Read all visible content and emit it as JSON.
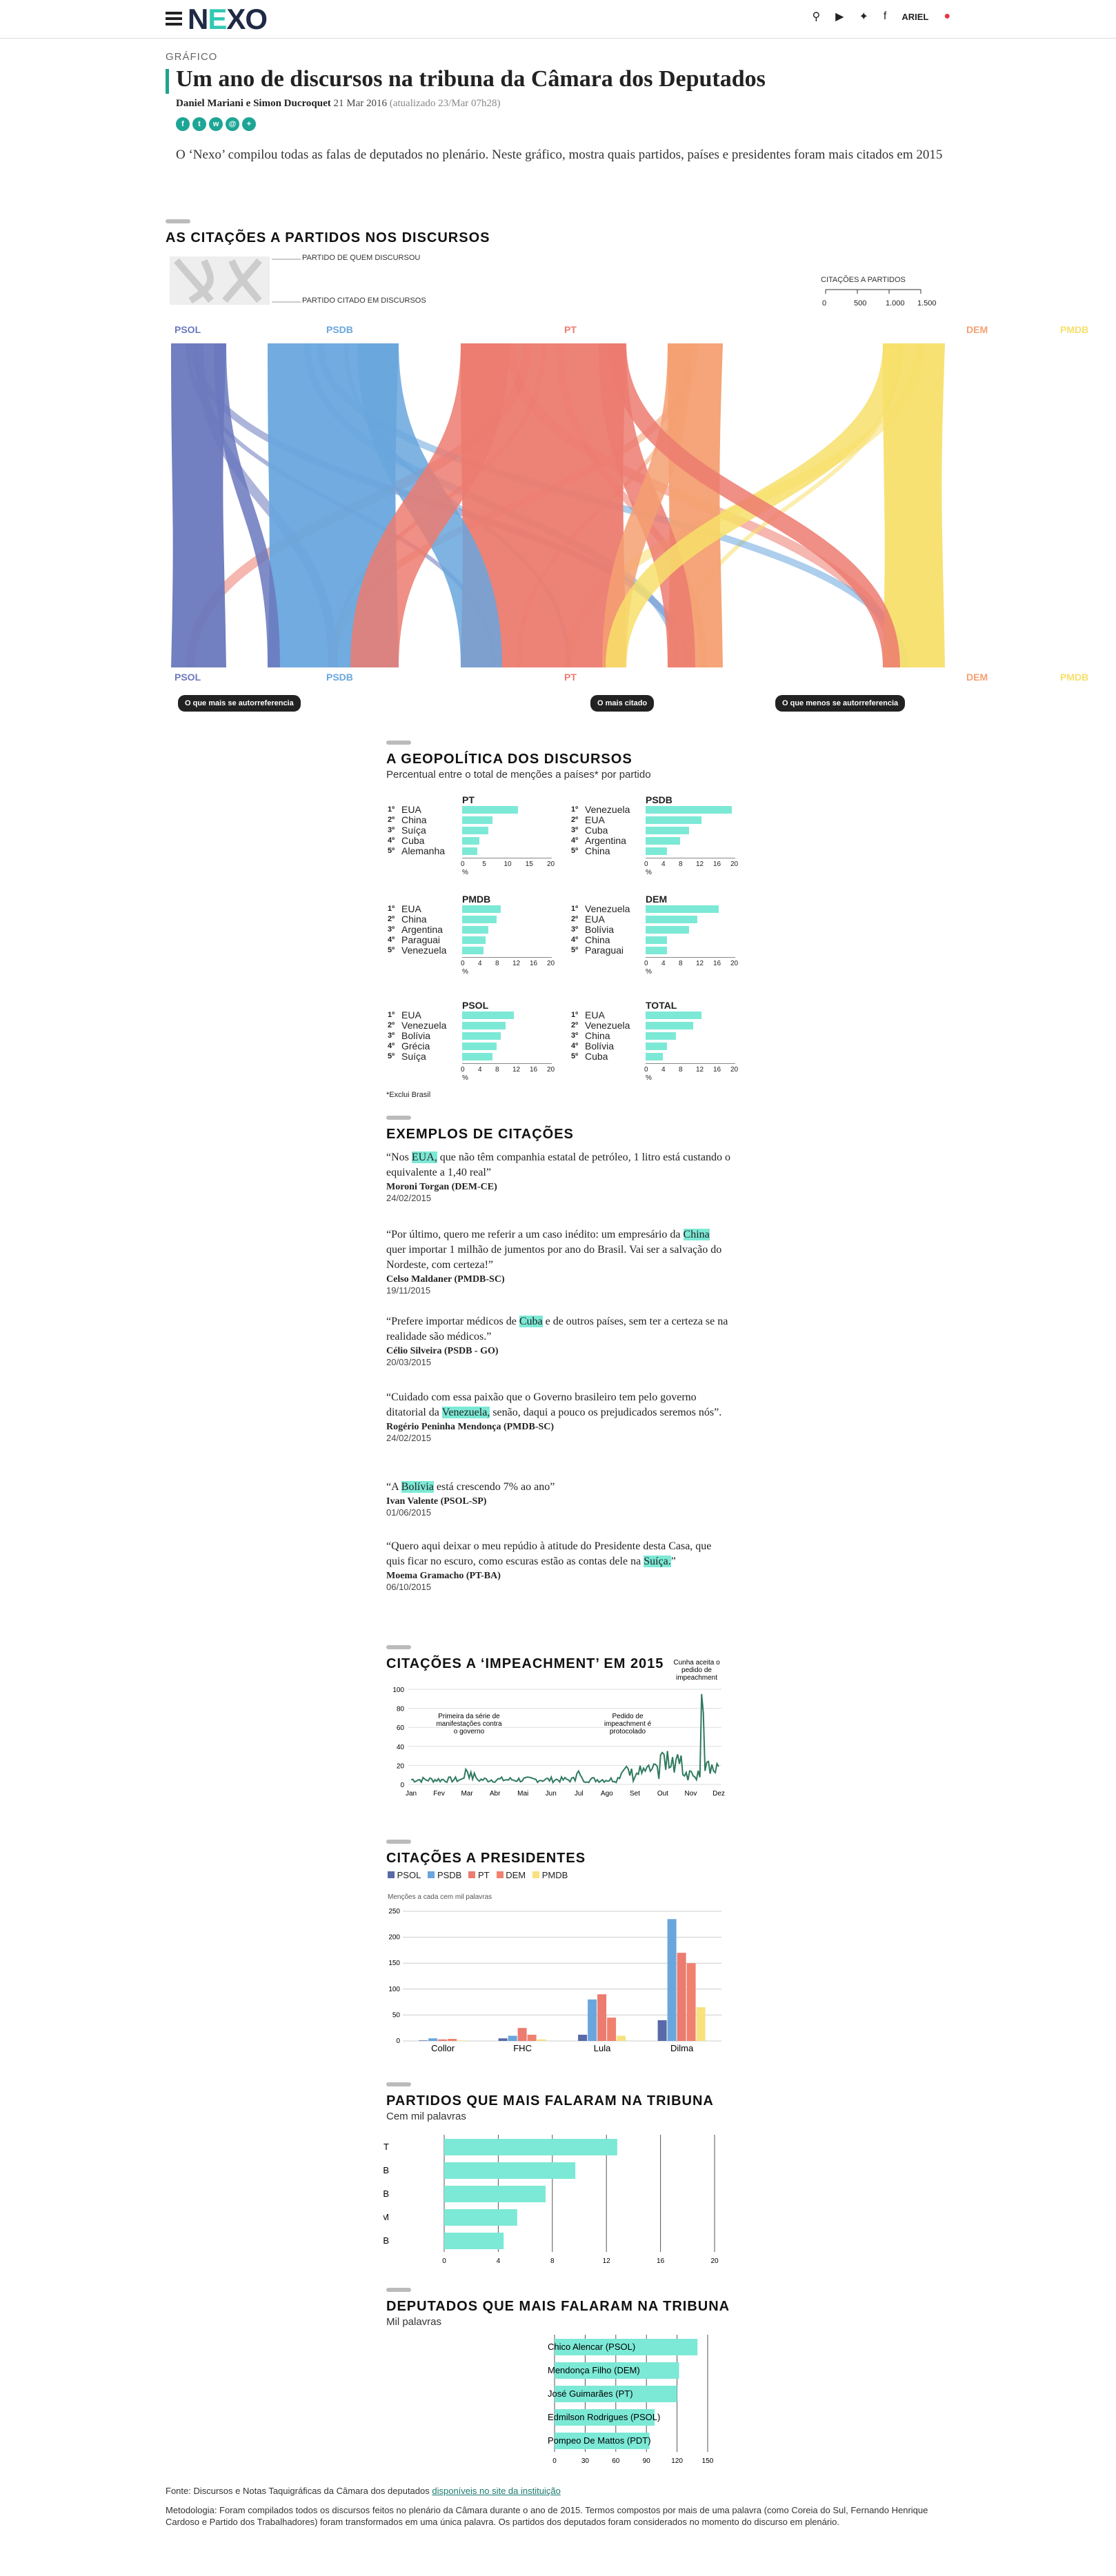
{
  "nav": {
    "logo_n": "N",
    "logo_e": "E",
    "logo_xo": "XO",
    "user": "ARIEL"
  },
  "article": {
    "kicker": "GRÁFICO",
    "title": "Um ano de discursos na tribuna da Câmara dos Deputados",
    "authors": "Daniel Mariani e Simon Ducroquet",
    "date": "21 Mar 2016",
    "updated": "(atualizado 23/Mar 07h28)",
    "intro": "O ‘Nexo’ compilou todas as falas de deputados no plenário. Neste gráfico, mostra quais partidos, países e presidentes foram mais citados em 2015"
  },
  "flow": {
    "title": "AS CITAÇÕES A PARTIDOS NOS DISCURSOS",
    "legend_top": "PARTIDO DE QUEM DISCURSOU",
    "legend_bottom": "PARTIDO CITADO EM DISCURSOS",
    "scale_title": "CITAÇÕES A PARTIDOS",
    "scale_ticks": [
      "0",
      "500",
      "1.000",
      "1.500"
    ],
    "parties": [
      {
        "name": "PSOL",
        "color": "#6a78bd"
      },
      {
        "name": "PSDB",
        "color": "#69a6dd"
      },
      {
        "name": "PT",
        "color": "#ec7b70"
      },
      {
        "name": "DEM",
        "color": "#f4a072"
      },
      {
        "name": "PMDB",
        "color": "#f7df6a"
      }
    ],
    "notes": [
      "O que mais se autorreferencia",
      "O mais citado",
      "O que menos se autorreferencia"
    ]
  },
  "geo": {
    "title": "A GEOPOLÍTICA DOS DISCURSOS",
    "subtitle": "Percentual entre o total de menções a países* por partido",
    "footnote": "*Exclui Brasil",
    "unit": "%",
    "charts": [
      {
        "party": "PT",
        "ticks": [
          "0",
          "5",
          "10",
          "15",
          "20"
        ],
        "max": 20,
        "items": [
          {
            "rank": "1º",
            "country": "EUA",
            "value": 13
          },
          {
            "rank": "2º",
            "country": "China",
            "value": 7
          },
          {
            "rank": "3º",
            "country": "Suíça",
            "value": 6
          },
          {
            "rank": "4º",
            "country": "Cuba",
            "value": 4
          },
          {
            "rank": "5º",
            "country": "Alemanha",
            "value": 3.5
          }
        ]
      },
      {
        "party": "PSDB",
        "ticks": [
          "0",
          "4",
          "8",
          "12",
          "16",
          "20"
        ],
        "max": 20,
        "items": [
          {
            "rank": "1º",
            "country": "Venezuela",
            "value": 20
          },
          {
            "rank": "2º",
            "country": "EUA",
            "value": 13
          },
          {
            "rank": "3º",
            "country": "Cuba",
            "value": 10
          },
          {
            "rank": "4º",
            "country": "Argentina",
            "value": 8
          },
          {
            "rank": "5º",
            "country": "China",
            "value": 5
          }
        ]
      },
      {
        "party": "PMDB",
        "ticks": [
          "0",
          "4",
          "8",
          "12",
          "16",
          "20"
        ],
        "max": 20,
        "items": [
          {
            "rank": "1º",
            "country": "EUA",
            "value": 9
          },
          {
            "rank": "2º",
            "country": "China",
            "value": 8
          },
          {
            "rank": "3º",
            "country": "Argentina",
            "value": 6
          },
          {
            "rank": "4º",
            "country": "Paraguai",
            "value": 5.5
          },
          {
            "rank": "5º",
            "country": "Venezuela",
            "value": 5
          }
        ]
      },
      {
        "party": "DEM",
        "ticks": [
          "0",
          "4",
          "8",
          "12",
          "16",
          "20"
        ],
        "max": 20,
        "items": [
          {
            "rank": "1º",
            "country": "Venezuela",
            "value": 17
          },
          {
            "rank": "2º",
            "country": "EUA",
            "value": 12
          },
          {
            "rank": "3º",
            "country": "Bolívia",
            "value": 10
          },
          {
            "rank": "4º",
            "country": "China",
            "value": 5
          },
          {
            "rank": "5º",
            "country": "Paraguai",
            "value": 5
          }
        ]
      },
      {
        "party": "PSOL",
        "ticks": [
          "0",
          "4",
          "8",
          "12",
          "16",
          "20"
        ],
        "max": 20,
        "items": [
          {
            "rank": "1º",
            "country": "EUA",
            "value": 12
          },
          {
            "rank": "2º",
            "country": "Venezuela",
            "value": 10
          },
          {
            "rank": "3º",
            "country": "Bolívia",
            "value": 9
          },
          {
            "rank": "4º",
            "country": "Grécia",
            "value": 8
          },
          {
            "rank": "5º",
            "country": "Suíça",
            "value": 7
          }
        ]
      },
      {
        "party": "TOTAL",
        "ticks": [
          "0",
          "4",
          "8",
          "12",
          "16",
          "20"
        ],
        "max": 20,
        "items": [
          {
            "rank": "1º",
            "country": "EUA",
            "value": 13
          },
          {
            "rank": "2º",
            "country": "Venezuela",
            "value": 11
          },
          {
            "rank": "3º",
            "country": "China",
            "value": 7
          },
          {
            "rank": "4º",
            "country": "Bolívia",
            "value": 5
          },
          {
            "rank": "5º",
            "country": "Cuba",
            "value": 4
          }
        ]
      }
    ]
  },
  "quotes": {
    "title": "EXEMPLOS DE CITAÇÕES",
    "items": [
      {
        "pre": "“Nos ",
        "hl": "EUA,",
        "post": " que não têm companhia estatal de petróleo, 1 litro está custando o equivalente a 1,40 real”",
        "author": "Moroni Torgan (DEM-CE)",
        "date": "24/02/2015"
      },
      {
        "pre": "“Por último, quero me referir a um caso inédito: um empresário da ",
        "hl": "China",
        "post": " quer importar 1 milhão de jumentos por ano do Brasil. Vai ser a salvação do Nordeste, com certeza!”",
        "author": "Celso Maldaner (PMDB-SC)",
        "date": "19/11/2015"
      },
      {
        "pre": "“Prefere importar médicos de ",
        "hl": "Cuba",
        "post": " e de outros países, sem ter a certeza se na realidade são médicos.”",
        "author": "Célio Silveira (PSDB - GO)",
        "date": "20/03/2015"
      },
      {
        "pre": "“Cuidado com essa paixão que o Governo brasileiro tem pelo governo ditatorial da ",
        "hl": "Venezuela,",
        "post": " senão, daqui a pouco os prejudicados seremos nós”.",
        "author": "Rogério Peninha Mendonça (PMDB-SC)",
        "date": "24/02/2015"
      },
      {
        "pre": "“A ",
        "hl": "Bolívia",
        "post": " está crescendo 7% ao ano”",
        "author": "Ivan Valente (PSOL-SP)",
        "date": "01/06/2015"
      },
      {
        "pre": "“Quero aqui deixar o meu repúdio à atitude do Presidente desta Casa, que quis ficar no escuro, como escuras estão as contas dele na ",
        "hl": "Suíça.",
        "post": "”",
        "author": "Moema Gramacho (PT-BA)",
        "date": "06/10/2015"
      }
    ]
  },
  "impeachment": {
    "title": "CITAÇÕES A ‘IMPEACHMENT’ EM 2015",
    "y_ticks": [
      "100",
      "80",
      "60",
      "40",
      "20",
      "0"
    ],
    "x_ticks": [
      "Jan",
      "Fev",
      "Mar",
      "Abr",
      "Mai",
      "Jun",
      "Jul",
      "Ago",
      "Set",
      "Out",
      "Nov",
      "Dez"
    ],
    "annotations": [
      "Primeira da série de manifestações contra o governo",
      "Pedido de impeachment é protocolado",
      "Cunha aceita o pedido de impeachment"
    ],
    "color": "#2f7a5e"
  },
  "presidents": {
    "title": "CITAÇÕES A PRESIDENTES",
    "note": "Menções a cada cem mil palavras",
    "y_ticks": [
      "250",
      "200",
      "150",
      "100",
      "50",
      "0"
    ],
    "chart_data": {
      "type": "bar",
      "categories": [
        "Collor",
        "FHC",
        "Lula",
        "Dilma"
      ],
      "ylim": [
        0,
        250
      ],
      "series": [
        {
          "name": "PSOL",
          "color": "#5a6aa8",
          "values": [
            1,
            5,
            12,
            40
          ]
        },
        {
          "name": "PSDB",
          "color": "#69a6dd",
          "values": [
            5,
            10,
            80,
            235
          ]
        },
        {
          "name": "PT",
          "color": "#ec7b70",
          "values": [
            3,
            25,
            90,
            170
          ]
        },
        {
          "name": "DEM",
          "color": "#f0816f",
          "values": [
            4,
            12,
            45,
            150
          ]
        },
        {
          "name": "PMDB",
          "color": "#f7e27d",
          "values": [
            1,
            3,
            10,
            65
          ]
        }
      ]
    }
  },
  "parties_talk": {
    "title": "PARTIDOS QUE MAIS FALARAM NA TRIBUNA",
    "subtitle": "Cem mil palavras",
    "x_ticks": [
      "0",
      "4",
      "8",
      "12",
      "16",
      "20"
    ],
    "chart_data": {
      "type": "bar",
      "categories": [
        "PT",
        "PSDB",
        "PMDB",
        "DEM",
        "PSB"
      ],
      "values": [
        12.8,
        9.7,
        7.5,
        5.4,
        4.4
      ],
      "xlim": [
        0,
        20
      ]
    }
  },
  "deputies_talk": {
    "title": "DEPUTADOS QUE MAIS FALARAM NA TRIBUNA",
    "subtitle": "Mil palavras",
    "x_ticks": [
      "0",
      "30",
      "60",
      "90",
      "120",
      "150"
    ],
    "chart_data": {
      "type": "bar",
      "categories": [
        "Chico Alencar (PSOL)",
        "Mendonça Filho (DEM)",
        "José Guimarães (PT)",
        "Edmilson Rodrigues (PSOL)",
        "Pompeo De Mattos (PDT)"
      ],
      "values": [
        140,
        122,
        120,
        98,
        93
      ],
      "xlim": [
        0,
        150
      ]
    }
  },
  "footer": {
    "source_pre": "Fonte: Discursos e Notas Taquigráficas da Câmara dos deputados ",
    "source_link": "disponíveis no site da instituição",
    "method": "Metodologia: Foram compilados todos os discursos feitos no plenário da Câmara durante o ano de 2015. Termos compostos por mais de uma palavra (como Coreia do Sul, Fernando Henrique Cardoso e Partido dos Trabalhadores) foram transformados em uma única palavra. Os partidos dos deputados foram considerados no momento do discurso em plenário."
  }
}
